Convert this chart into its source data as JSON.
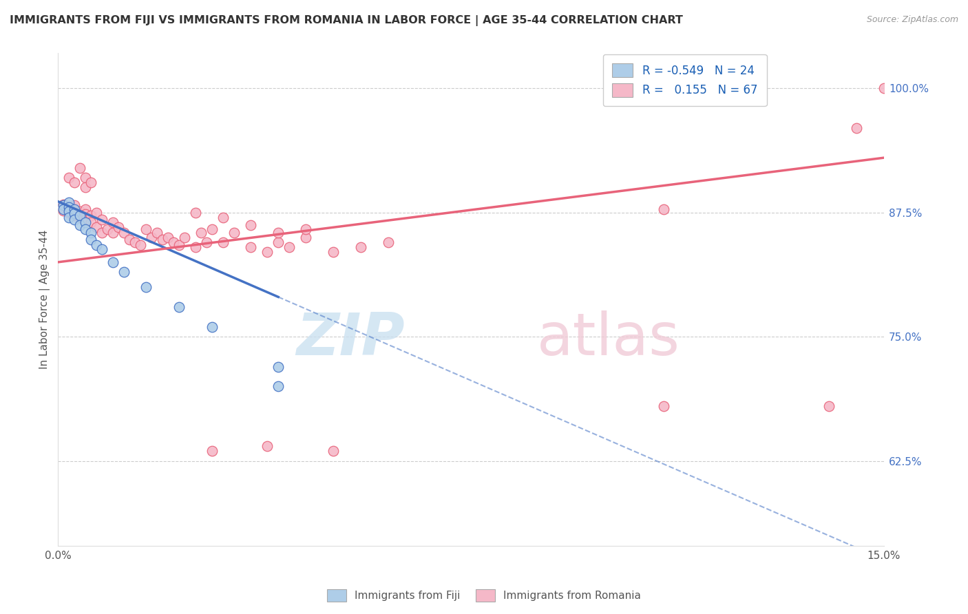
{
  "title": "IMMIGRANTS FROM FIJI VS IMMIGRANTS FROM ROMANIA IN LABOR FORCE | AGE 35-44 CORRELATION CHART",
  "source": "Source: ZipAtlas.com",
  "ylabel": "In Labor Force | Age 35-44",
  "ylabel_right_ticks": [
    "100.0%",
    "87.5%",
    "75.0%",
    "62.5%"
  ],
  "ylabel_right_vals": [
    1.0,
    0.875,
    0.75,
    0.625
  ],
  "legend_fiji_R": "-0.549",
  "legend_fiji_N": "24",
  "legend_romania_R": "0.155",
  "legend_romania_N": "67",
  "fiji_color": "#aecde8",
  "romania_color": "#f5b8c8",
  "fiji_line_color": "#4472c4",
  "romania_line_color": "#e8637a",
  "xlim": [
    0.0,
    0.15
  ],
  "ylim": [
    0.54,
    1.035
  ],
  "fiji_scatter_x": [
    0.001,
    0.001,
    0.002,
    0.002,
    0.002,
    0.002,
    0.003,
    0.003,
    0.003,
    0.004,
    0.004,
    0.005,
    0.005,
    0.006,
    0.006,
    0.007,
    0.008,
    0.01,
    0.012,
    0.016,
    0.022,
    0.028,
    0.04,
    0.04
  ],
  "fiji_scatter_y": [
    0.882,
    0.878,
    0.885,
    0.88,
    0.876,
    0.87,
    0.878,
    0.874,
    0.868,
    0.872,
    0.862,
    0.865,
    0.858,
    0.855,
    0.848,
    0.842,
    0.838,
    0.825,
    0.815,
    0.8,
    0.78,
    0.76,
    0.72,
    0.7
  ],
  "romania_scatter_x": [
    0.001,
    0.001,
    0.002,
    0.002,
    0.003,
    0.003,
    0.003,
    0.004,
    0.004,
    0.005,
    0.005,
    0.005,
    0.006,
    0.006,
    0.007,
    0.007,
    0.008,
    0.008,
    0.009,
    0.01,
    0.01,
    0.011,
    0.012,
    0.013,
    0.014,
    0.015,
    0.016,
    0.017,
    0.018,
    0.019,
    0.02,
    0.021,
    0.022,
    0.023,
    0.025,
    0.026,
    0.027,
    0.028,
    0.03,
    0.032,
    0.035,
    0.038,
    0.04,
    0.042,
    0.045,
    0.05,
    0.055,
    0.06,
    0.025,
    0.03,
    0.035,
    0.04,
    0.045,
    0.11,
    0.145,
    0.15,
    0.028,
    0.038,
    0.05,
    0.11,
    0.14,
    0.002,
    0.003,
    0.004,
    0.005,
    0.005,
    0.006
  ],
  "romania_scatter_y": [
    0.883,
    0.877,
    0.88,
    0.875,
    0.882,
    0.877,
    0.872,
    0.876,
    0.87,
    0.878,
    0.873,
    0.867,
    0.872,
    0.865,
    0.875,
    0.86,
    0.868,
    0.855,
    0.858,
    0.865,
    0.855,
    0.86,
    0.855,
    0.848,
    0.845,
    0.842,
    0.858,
    0.85,
    0.855,
    0.848,
    0.85,
    0.845,
    0.842,
    0.85,
    0.84,
    0.855,
    0.845,
    0.858,
    0.845,
    0.855,
    0.84,
    0.835,
    0.845,
    0.84,
    0.85,
    0.835,
    0.84,
    0.845,
    0.875,
    0.87,
    0.862,
    0.855,
    0.858,
    0.878,
    0.96,
    1.0,
    0.635,
    0.64,
    0.635,
    0.68,
    0.68,
    0.91,
    0.905,
    0.92,
    0.91,
    0.9,
    0.905
  ]
}
